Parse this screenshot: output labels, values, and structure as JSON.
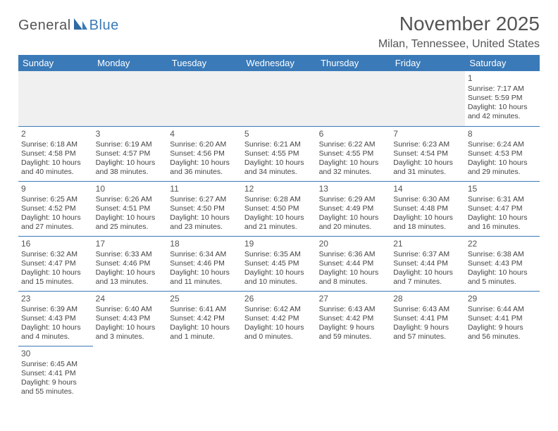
{
  "logo": {
    "text1": "General",
    "text2": "Blue"
  },
  "title": "November 2025",
  "location": "Milan, Tennessee, United States",
  "colors": {
    "header_bg": "#3a7ab8",
    "header_text": "#ffffff",
    "border": "#3a7ab8",
    "body_text": "#444444",
    "title_text": "#555555",
    "empty_bg": "#f0f0f0"
  },
  "weekdays": [
    "Sunday",
    "Monday",
    "Tuesday",
    "Wednesday",
    "Thursday",
    "Friday",
    "Saturday"
  ],
  "weeks": [
    [
      null,
      null,
      null,
      null,
      null,
      null,
      {
        "n": "1",
        "sr": "Sunrise: 7:17 AM",
        "ss": "Sunset: 5:59 PM",
        "d1": "Daylight: 10 hours",
        "d2": "and 42 minutes."
      }
    ],
    [
      {
        "n": "2",
        "sr": "Sunrise: 6:18 AM",
        "ss": "Sunset: 4:58 PM",
        "d1": "Daylight: 10 hours",
        "d2": "and 40 minutes."
      },
      {
        "n": "3",
        "sr": "Sunrise: 6:19 AM",
        "ss": "Sunset: 4:57 PM",
        "d1": "Daylight: 10 hours",
        "d2": "and 38 minutes."
      },
      {
        "n": "4",
        "sr": "Sunrise: 6:20 AM",
        "ss": "Sunset: 4:56 PM",
        "d1": "Daylight: 10 hours",
        "d2": "and 36 minutes."
      },
      {
        "n": "5",
        "sr": "Sunrise: 6:21 AM",
        "ss": "Sunset: 4:55 PM",
        "d1": "Daylight: 10 hours",
        "d2": "and 34 minutes."
      },
      {
        "n": "6",
        "sr": "Sunrise: 6:22 AM",
        "ss": "Sunset: 4:55 PM",
        "d1": "Daylight: 10 hours",
        "d2": "and 32 minutes."
      },
      {
        "n": "7",
        "sr": "Sunrise: 6:23 AM",
        "ss": "Sunset: 4:54 PM",
        "d1": "Daylight: 10 hours",
        "d2": "and 31 minutes."
      },
      {
        "n": "8",
        "sr": "Sunrise: 6:24 AM",
        "ss": "Sunset: 4:53 PM",
        "d1": "Daylight: 10 hours",
        "d2": "and 29 minutes."
      }
    ],
    [
      {
        "n": "9",
        "sr": "Sunrise: 6:25 AM",
        "ss": "Sunset: 4:52 PM",
        "d1": "Daylight: 10 hours",
        "d2": "and 27 minutes."
      },
      {
        "n": "10",
        "sr": "Sunrise: 6:26 AM",
        "ss": "Sunset: 4:51 PM",
        "d1": "Daylight: 10 hours",
        "d2": "and 25 minutes."
      },
      {
        "n": "11",
        "sr": "Sunrise: 6:27 AM",
        "ss": "Sunset: 4:50 PM",
        "d1": "Daylight: 10 hours",
        "d2": "and 23 minutes."
      },
      {
        "n": "12",
        "sr": "Sunrise: 6:28 AM",
        "ss": "Sunset: 4:50 PM",
        "d1": "Daylight: 10 hours",
        "d2": "and 21 minutes."
      },
      {
        "n": "13",
        "sr": "Sunrise: 6:29 AM",
        "ss": "Sunset: 4:49 PM",
        "d1": "Daylight: 10 hours",
        "d2": "and 20 minutes."
      },
      {
        "n": "14",
        "sr": "Sunrise: 6:30 AM",
        "ss": "Sunset: 4:48 PM",
        "d1": "Daylight: 10 hours",
        "d2": "and 18 minutes."
      },
      {
        "n": "15",
        "sr": "Sunrise: 6:31 AM",
        "ss": "Sunset: 4:47 PM",
        "d1": "Daylight: 10 hours",
        "d2": "and 16 minutes."
      }
    ],
    [
      {
        "n": "16",
        "sr": "Sunrise: 6:32 AM",
        "ss": "Sunset: 4:47 PM",
        "d1": "Daylight: 10 hours",
        "d2": "and 15 minutes."
      },
      {
        "n": "17",
        "sr": "Sunrise: 6:33 AM",
        "ss": "Sunset: 4:46 PM",
        "d1": "Daylight: 10 hours",
        "d2": "and 13 minutes."
      },
      {
        "n": "18",
        "sr": "Sunrise: 6:34 AM",
        "ss": "Sunset: 4:46 PM",
        "d1": "Daylight: 10 hours",
        "d2": "and 11 minutes."
      },
      {
        "n": "19",
        "sr": "Sunrise: 6:35 AM",
        "ss": "Sunset: 4:45 PM",
        "d1": "Daylight: 10 hours",
        "d2": "and 10 minutes."
      },
      {
        "n": "20",
        "sr": "Sunrise: 6:36 AM",
        "ss": "Sunset: 4:44 PM",
        "d1": "Daylight: 10 hours",
        "d2": "and 8 minutes."
      },
      {
        "n": "21",
        "sr": "Sunrise: 6:37 AM",
        "ss": "Sunset: 4:44 PM",
        "d1": "Daylight: 10 hours",
        "d2": "and 7 minutes."
      },
      {
        "n": "22",
        "sr": "Sunrise: 6:38 AM",
        "ss": "Sunset: 4:43 PM",
        "d1": "Daylight: 10 hours",
        "d2": "and 5 minutes."
      }
    ],
    [
      {
        "n": "23",
        "sr": "Sunrise: 6:39 AM",
        "ss": "Sunset: 4:43 PM",
        "d1": "Daylight: 10 hours",
        "d2": "and 4 minutes."
      },
      {
        "n": "24",
        "sr": "Sunrise: 6:40 AM",
        "ss": "Sunset: 4:43 PM",
        "d1": "Daylight: 10 hours",
        "d2": "and 3 minutes."
      },
      {
        "n": "25",
        "sr": "Sunrise: 6:41 AM",
        "ss": "Sunset: 4:42 PM",
        "d1": "Daylight: 10 hours",
        "d2": "and 1 minute."
      },
      {
        "n": "26",
        "sr": "Sunrise: 6:42 AM",
        "ss": "Sunset: 4:42 PM",
        "d1": "Daylight: 10 hours",
        "d2": "and 0 minutes."
      },
      {
        "n": "27",
        "sr": "Sunrise: 6:43 AM",
        "ss": "Sunset: 4:42 PM",
        "d1": "Daylight: 9 hours",
        "d2": "and 59 minutes."
      },
      {
        "n": "28",
        "sr": "Sunrise: 6:43 AM",
        "ss": "Sunset: 4:41 PM",
        "d1": "Daylight: 9 hours",
        "d2": "and 57 minutes."
      },
      {
        "n": "29",
        "sr": "Sunrise: 6:44 AM",
        "ss": "Sunset: 4:41 PM",
        "d1": "Daylight: 9 hours",
        "d2": "and 56 minutes."
      }
    ],
    [
      {
        "n": "30",
        "sr": "Sunrise: 6:45 AM",
        "ss": "Sunset: 4:41 PM",
        "d1": "Daylight: 9 hours",
        "d2": "and 55 minutes."
      },
      null,
      null,
      null,
      null,
      null,
      null
    ]
  ]
}
